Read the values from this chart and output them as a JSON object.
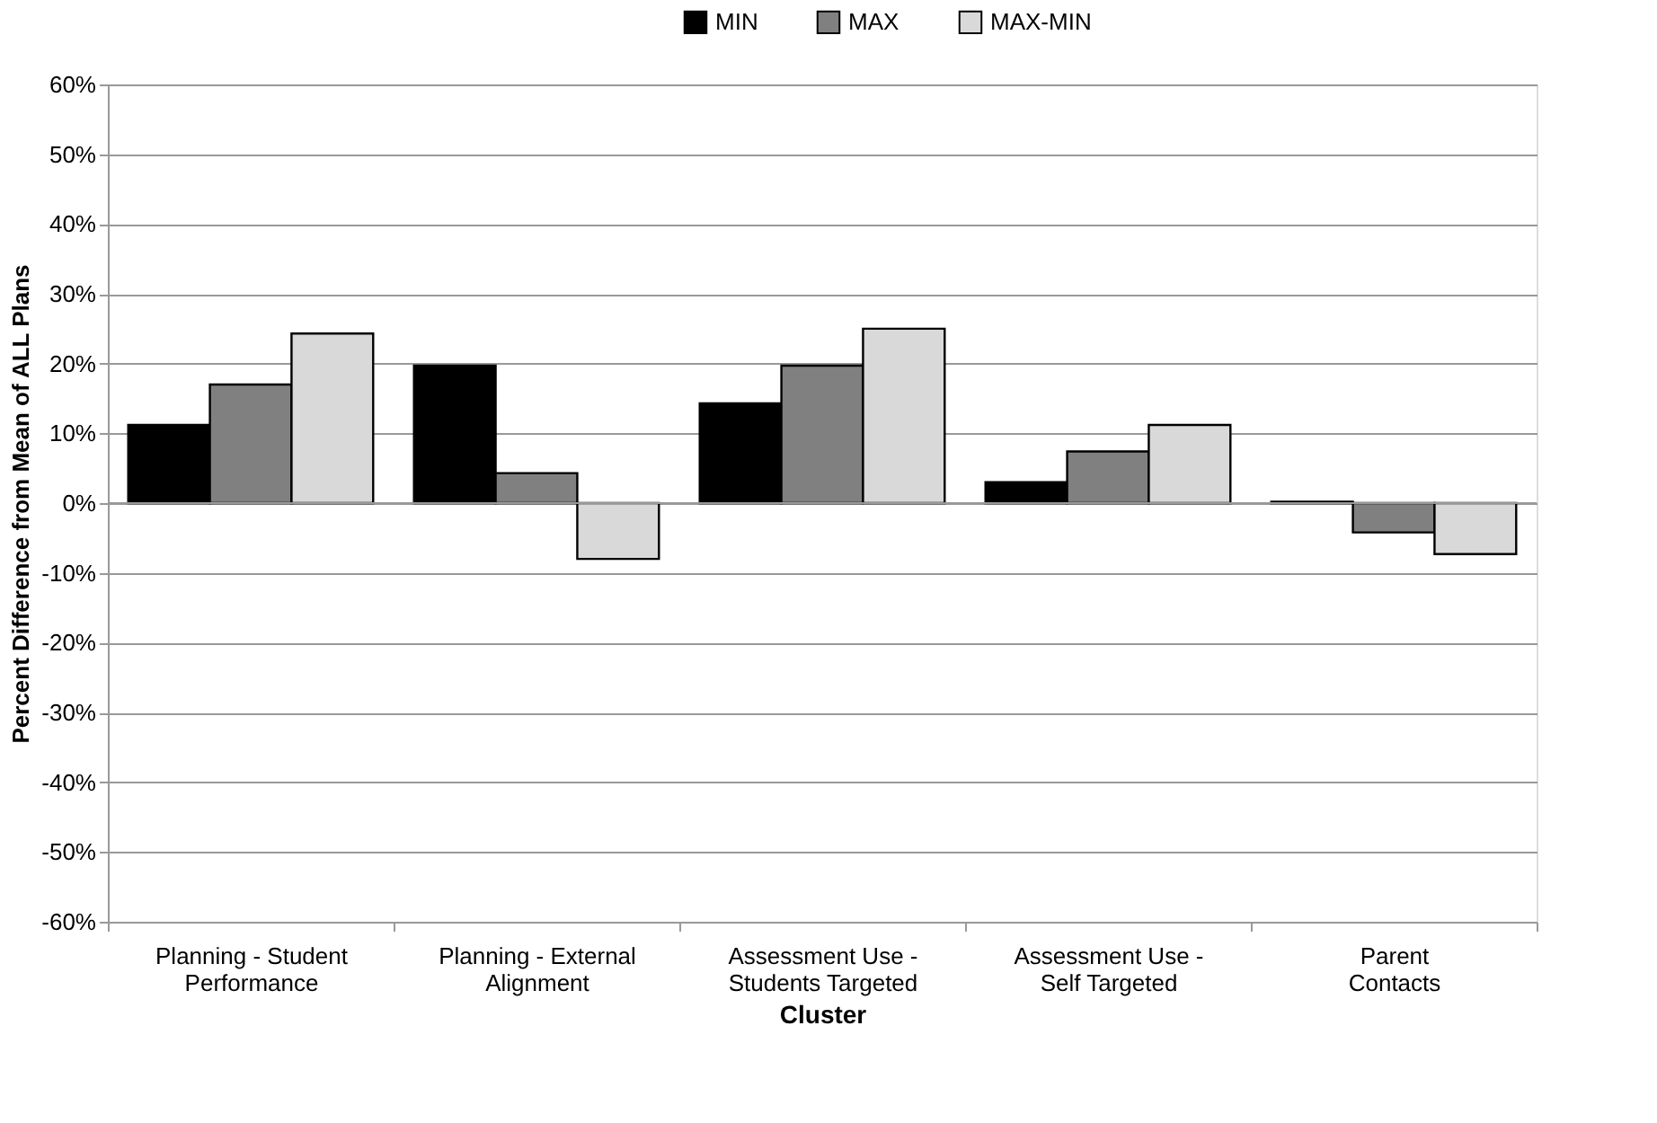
{
  "chart_data": {
    "type": "bar",
    "xlabel": "Cluster",
    "ylabel": "Percent Difference from Mean of ALL Plans",
    "categories": [
      "Planning - Student Performance",
      "Planning - External Alignment",
      "Assessment Use - Students Targeted",
      "Assessment Use - Self Targeted",
      "Parent Contacts"
    ],
    "series": [
      {
        "name": "MIN",
        "color": "#000000",
        "values": [
          11.2,
          19.7,
          14.3,
          3.0,
          0.2
        ]
      },
      {
        "name": "MAX",
        "color": "#808080",
        "values": [
          17.0,
          4.3,
          19.7,
          7.4,
          -4.2
        ]
      },
      {
        "name": "MAX-MIN",
        "color": "#d9d9d9",
        "values": [
          24.3,
          -8.0,
          25.0,
          11.2,
          -7.3
        ]
      }
    ],
    "ylim": [
      -60,
      60
    ],
    "yticks": [
      {
        "value": -60,
        "label": "-60%"
      },
      {
        "value": -50,
        "label": "-50%"
      },
      {
        "value": -40,
        "label": "-40%"
      },
      {
        "value": -30,
        "label": "-30%"
      },
      {
        "value": -20,
        "label": "-20%"
      },
      {
        "value": -10,
        "label": "-10%"
      },
      {
        "value": 0,
        "label": "0%"
      },
      {
        "value": 10,
        "label": "10%"
      },
      {
        "value": 20,
        "label": "20%"
      },
      {
        "value": 30,
        "label": "30%"
      },
      {
        "value": 40,
        "label": "40%"
      },
      {
        "value": 50,
        "label": "50%"
      },
      {
        "value": 60,
        "label": "60%"
      }
    ],
    "grid": "y",
    "legend": "top"
  }
}
